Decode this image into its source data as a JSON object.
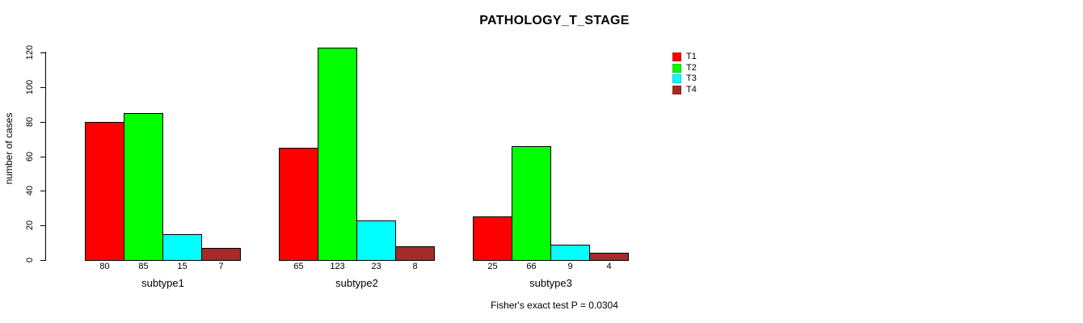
{
  "header": {
    "title": "PATHOLOGY_T_STAGE"
  },
  "footer": {
    "annotation": "Fisher's exact test P = 0.0304"
  },
  "y_axis": {
    "label": "number of cases",
    "ticks": [
      0,
      20,
      40,
      60,
      80,
      100,
      120
    ]
  },
  "chart_data": {
    "type": "bar",
    "title": "PATHOLOGY_T_STAGE",
    "xlabel": "",
    "ylabel": "number of cases",
    "ylim": [
      0,
      120
    ],
    "grid": false,
    "legend_position": "right",
    "bar_value_labels": true,
    "categories": [
      "subtype1",
      "subtype2",
      "subtype3"
    ],
    "series": [
      {
        "name": "T1",
        "color": "#ff0000",
        "values": [
          80,
          65,
          25
        ]
      },
      {
        "name": "T2",
        "color": "#00ff00",
        "values": [
          85,
          123,
          66
        ]
      },
      {
        "name": "T3",
        "color": "#00ffff",
        "values": [
          15,
          23,
          9
        ]
      },
      {
        "name": "T4",
        "color": "#a52a2a",
        "values": [
          7,
          8,
          4
        ]
      }
    ],
    "annotation": "Fisher's exact test P = 0.0304"
  }
}
